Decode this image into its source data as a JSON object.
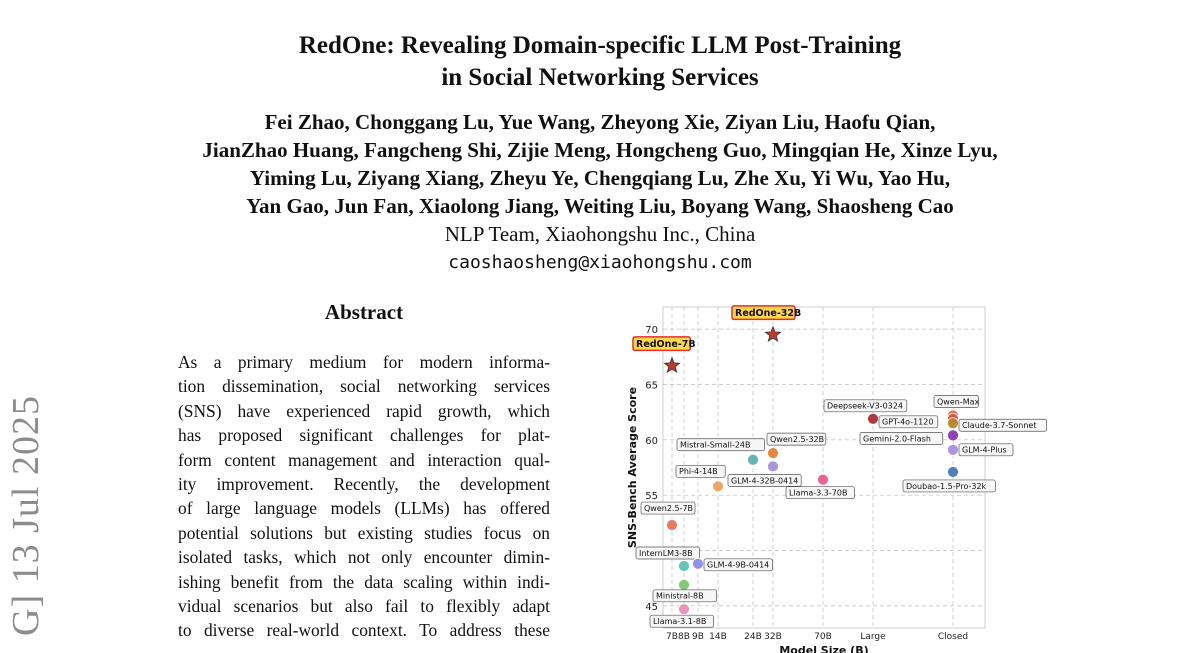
{
  "paper": {
    "title_line1": "RedOne: Revealing Domain-specific LLM Post-Training",
    "title_line2": "in Social Networking Services",
    "authors_line1": "Fei Zhao, Chonggang Lu, Yue Wang, Zheyong Xie, Ziyan Liu, Haofu Qian,",
    "authors_line2": "JianZhao Huang, Fangcheng Shi, Zijie Meng, Hongcheng Guo, Mingqian He, Xinze Lyu,",
    "authors_line3": "Yiming Lu, Ziyang Xiang, Zheyu Ye, Chengqiang Lu, Zhe Xu, Yi Wu, Yao Hu,",
    "authors_line4": "Yan Gao, Jun Fan, Xiaolong Jiang, Weiting Liu, Boyang Wang, Shaosheng Cao",
    "affiliation": "NLP Team, Xiaohongshu Inc., China",
    "email": "caoshaosheng@xiaohongshu.com",
    "arxiv_stamp": "G]  13 Jul 2025"
  },
  "abstract": {
    "heading": "Abstract",
    "lines": [
      "As a primary medium for modern informa-",
      "tion dissemination, social networking services",
      "(SNS) have experienced rapid growth, which",
      "has proposed significant challenges for plat-",
      "form content management and interaction qual-",
      "ity improvement. Recently, the development",
      "of large language models (LLMs) has offered",
      "potential solutions but existing studies focus on",
      "isolated tasks, which not only encounter dimin-",
      "ishing benefit from the data scaling within indi-",
      "vidual scenarios but also fail to flexibly adapt",
      "to diverse real-world context. To address these"
    ]
  },
  "chart_data": {
    "type": "scatter",
    "ylabel": "SNS-Bench Average Score",
    "xlabel": "Model Size (B)",
    "x_ticks": [
      "7B",
      "8B",
      "9B",
      "14B",
      "24B",
      "32B",
      "70B",
      "Large",
      "Closed"
    ],
    "y_ticks": [
      45,
      50,
      55,
      60,
      65,
      70
    ],
    "ylim": [
      43,
      72
    ],
    "grid": true,
    "points": [
      {
        "label": "RedOne-7B",
        "x": "7B",
        "y": 66.7,
        "color": "#c0392b",
        "marker": "star",
        "highlight": true
      },
      {
        "label": "RedOne-32B",
        "x": "32B",
        "y": 69.5,
        "color": "#c0392b",
        "marker": "star",
        "highlight": true
      },
      {
        "label": "Qwen2.5-7B",
        "x": "7B",
        "y": 52.3,
        "color": "#e8735a"
      },
      {
        "label": "InternLM3-8B",
        "x": "8B",
        "y": 48.6,
        "color": "#5ec1b0"
      },
      {
        "label": "Ministral-8B",
        "x": "8B",
        "y": 46.9,
        "color": "#7bc96f"
      },
      {
        "label": "Llama-3.1-8B",
        "x": "8B",
        "y": 44.7,
        "color": "#f08fb8"
      },
      {
        "label": "GLM-4-9B-0414",
        "x": "9B",
        "y": 48.8,
        "color": "#8e8ee0"
      },
      {
        "label": "Phi-4-14B",
        "x": "14B",
        "y": 55.8,
        "color": "#f0a35e"
      },
      {
        "label": "Mistral-Small-24B",
        "x": "24B",
        "y": 58.2,
        "color": "#5eb0b0"
      },
      {
        "label": "Qwen2.5-32B",
        "x": "32B",
        "y": 58.8,
        "color": "#e8823a"
      },
      {
        "label": "GLM-4-32B-0414",
        "x": "32B",
        "y": 57.6,
        "color": "#a88fd8"
      },
      {
        "label": "Llama-3.3-70B",
        "x": "70B",
        "y": 56.4,
        "color": "#ee5a8f"
      },
      {
        "label": "Deepseek-V3-0324",
        "x": "Large",
        "y": 61.9,
        "color": "#a83232"
      },
      {
        "label": "Qwen-Max",
        "x": "Closed",
        "y": 62.2,
        "color": "#ee6a3a"
      },
      {
        "label": "GPT-4o-1120",
        "x": "Closed",
        "y": 61.9,
        "color": "#d05a4a"
      },
      {
        "label": "Claude-3.7-Sonnet",
        "x": "Closed",
        "y": 61.5,
        "color": "#b8862a"
      },
      {
        "label": "Gemini-2.0-Flash",
        "x": "Closed",
        "y": 60.4,
        "color": "#8a3ab0"
      },
      {
        "label": "GLM-4-Plus",
        "x": "Closed",
        "y": 59.1,
        "color": "#a88fe0"
      },
      {
        "label": "Doubao-1.5-Pro-32k",
        "x": "Closed",
        "y": 57.1,
        "color": "#4a7ab0"
      }
    ]
  }
}
